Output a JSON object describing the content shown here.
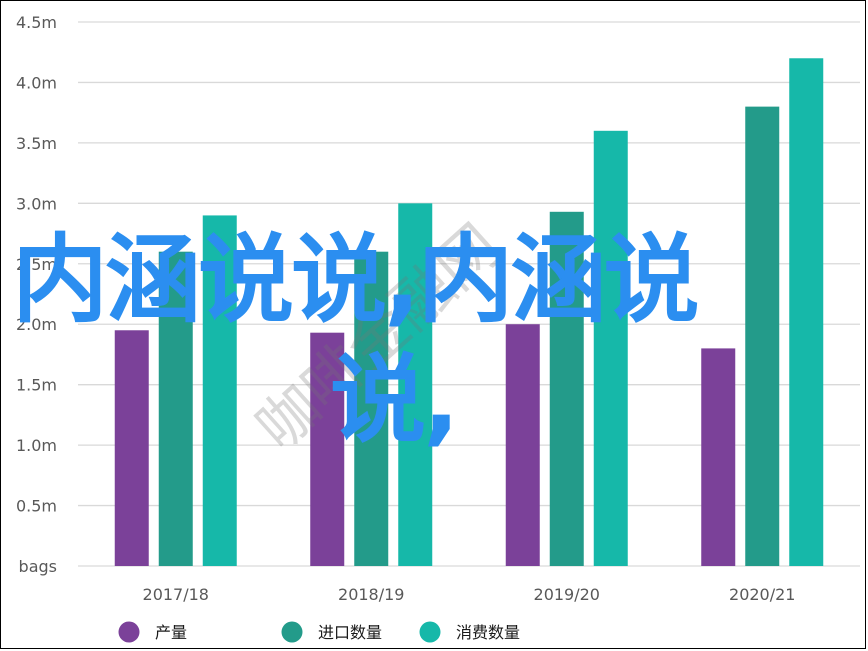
{
  "chart_data": {
    "type": "bar",
    "categories": [
      "2017/18",
      "2018/19",
      "2019/20",
      "2020/21"
    ],
    "series": [
      {
        "name": "产量",
        "color": "#7b4199",
        "values": [
          1.95,
          1.93,
          2.0,
          1.8
        ]
      },
      {
        "name": "进口数量",
        "color": "#239b8a",
        "values": [
          2.6,
          2.6,
          2.93,
          3.8
        ]
      },
      {
        "name": "消费数量",
        "color": "#16b8a9",
        "values": [
          2.9,
          3.0,
          3.6,
          4.2
        ]
      }
    ],
    "ylim": [
      0,
      4.5
    ],
    "yticks": [
      {
        "value": 0,
        "label": "bags"
      },
      {
        "value": 0.5,
        "label": "0.5m"
      },
      {
        "value": 1.0,
        "label": "1.0m"
      },
      {
        "value": 1.5,
        "label": "1.5m"
      },
      {
        "value": 2.0,
        "label": "2.0m"
      },
      {
        "value": 2.5,
        "label": "2.5m"
      },
      {
        "value": 3.0,
        "label": "3.0m"
      },
      {
        "value": 3.5,
        "label": "3.5m"
      },
      {
        "value": 4.0,
        "label": "4.0m"
      },
      {
        "value": 4.5,
        "label": "4.5m"
      }
    ],
    "grid": true,
    "legend_position": "bottom"
  },
  "overlay": {
    "line1": "内涵说说,内涵说",
    "line2": "说,",
    "watermark": "咖啡金融网",
    "color": "#2b8ef0"
  }
}
